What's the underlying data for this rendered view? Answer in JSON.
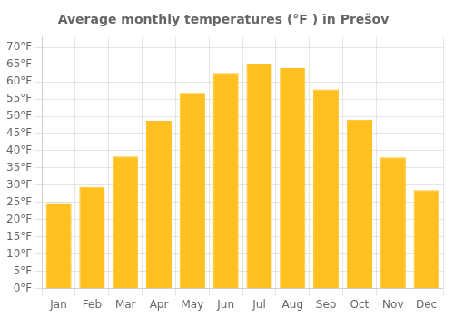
{
  "chart_data": {
    "type": "bar",
    "title": "Average monthly temperatures (°F ) in Prešov",
    "categories": [
      "Jan",
      "Feb",
      "Mar",
      "Apr",
      "May",
      "Jun",
      "Jul",
      "Aug",
      "Sep",
      "Oct",
      "Nov",
      "Dec"
    ],
    "values": [
      24.8,
      29.5,
      38.3,
      48.7,
      56.8,
      62.6,
      65.3,
      64.0,
      57.8,
      49.0,
      38.1,
      28.6
    ],
    "color": "#FFC020",
    "ylim": [
      0,
      73
    ],
    "yticks": [
      {
        "value": 0,
        "label": "0°F"
      },
      {
        "value": 5,
        "label": "5°F"
      },
      {
        "value": 10,
        "label": "10°F"
      },
      {
        "value": 15,
        "label": "15°F"
      },
      {
        "value": 20,
        "label": "20°F"
      },
      {
        "value": 25,
        "label": "25°F"
      },
      {
        "value": 30,
        "label": "30°F"
      },
      {
        "value": 35,
        "label": "35°F"
      },
      {
        "value": 40,
        "label": "40°F"
      },
      {
        "value": 45,
        "label": "45°F"
      },
      {
        "value": 50,
        "label": "50°F"
      },
      {
        "value": 55,
        "label": "55°F"
      },
      {
        "value": 60,
        "label": "60°F"
      },
      {
        "value": 65,
        "label": "65°F"
      },
      {
        "value": 70,
        "label": "70°F"
      }
    ],
    "grid": true
  }
}
